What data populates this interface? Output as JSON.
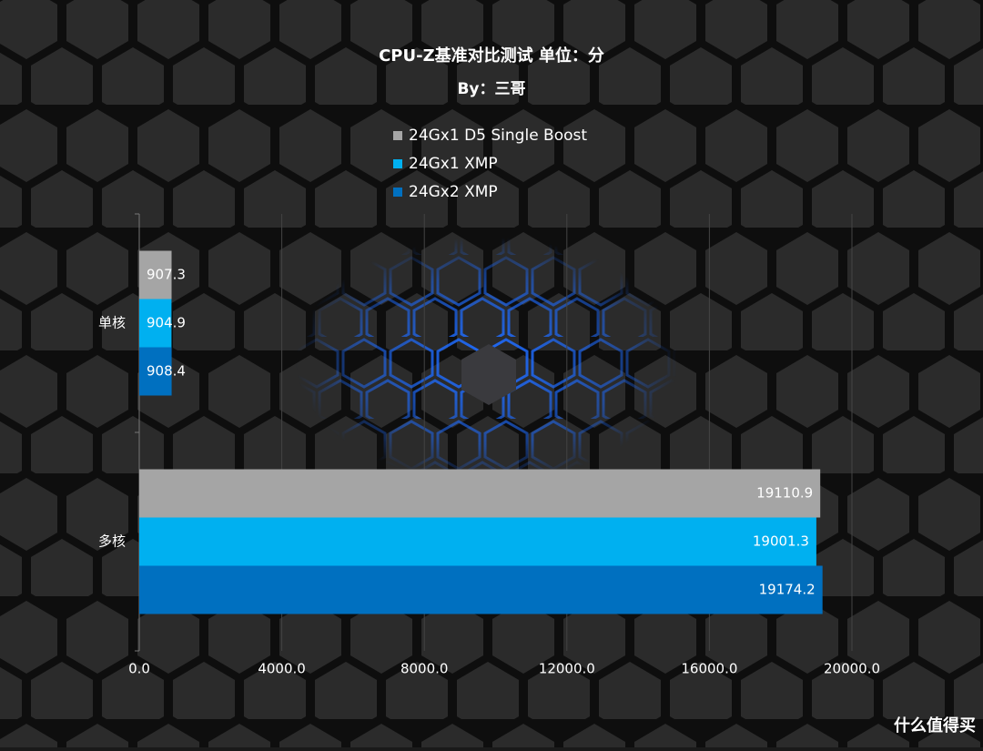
{
  "chart_data": {
    "type": "hbar",
    "title": "CPU-Z基准对比测试 单位：分",
    "subtitle": "By：三哥",
    "categories": [
      "单核",
      "多核"
    ],
    "series": [
      {
        "name": "24Gx1 D5 Single Boost",
        "color": "#a5a5a5",
        "values": [
          907.3,
          19110.9
        ]
      },
      {
        "name": "24Gx1 XMP",
        "color": "#00b0f0",
        "values": [
          904.9,
          19001.3
        ]
      },
      {
        "name": "24Gx2 XMP",
        "color": "#0070c0",
        "values": [
          908.4,
          19174.2
        ]
      }
    ],
    "xlim": [
      0,
      20000
    ],
    "xticks": [
      {
        "value": 0,
        "label": "0.0"
      },
      {
        "value": 4000,
        "label": "4000.0"
      },
      {
        "value": 8000,
        "label": "8000.0"
      },
      {
        "value": 12000,
        "label": "12000.0"
      },
      {
        "value": 16000,
        "label": "16000.0"
      },
      {
        "value": 20000,
        "label": "20000.0"
      }
    ],
    "grid": true,
    "watermark": "什么值得买"
  }
}
